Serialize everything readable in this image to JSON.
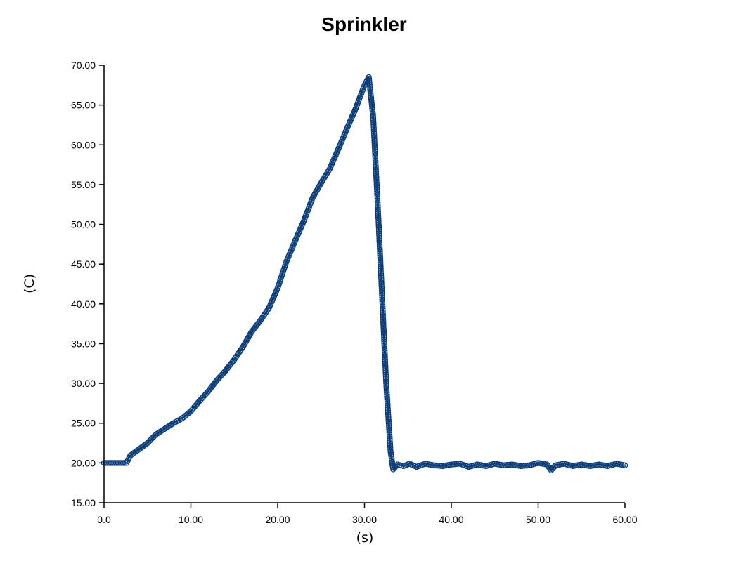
{
  "chart_data": {
    "type": "line",
    "title": "Sprinkler",
    "xlabel": "(s)",
    "ylabel": "(C)",
    "xlim": [
      0,
      60
    ],
    "ylim": [
      15,
      70
    ],
    "xticks": [
      "0.0",
      "10.00",
      "20.00",
      "30.00",
      "40.00",
      "50.00",
      "60.00"
    ],
    "yticks": [
      "15.00",
      "20.00",
      "25.00",
      "30.00",
      "35.00",
      "40.00",
      "45.00",
      "50.00",
      "55.00",
      "60.00",
      "65.00",
      "70.00"
    ],
    "grid": false,
    "legend": "none",
    "series": [
      {
        "color": "#0a3d7a",
        "marker": "circle-open",
        "x": [
          0,
          1,
          2,
          2.6,
          3,
          4,
          5,
          6,
          7,
          8,
          9,
          10,
          11,
          12,
          13,
          14,
          15,
          16,
          17,
          18,
          19,
          20,
          21,
          22,
          23,
          24,
          25,
          26,
          27,
          28,
          29,
          30,
          30.5,
          31,
          31.5,
          32,
          32.5,
          33,
          33.3,
          33.8,
          34.5,
          35.2,
          36,
          37,
          38,
          39,
          40,
          41,
          42,
          43,
          44,
          45,
          46,
          47,
          48,
          49,
          50,
          51,
          51.5,
          52,
          53,
          54,
          55,
          56,
          57,
          58,
          59,
          60
        ],
        "y": [
          20,
          20,
          20,
          20,
          20.9,
          21.7,
          22.5,
          23.6,
          24.3,
          25,
          25.6,
          26.5,
          27.8,
          29.0,
          30.4,
          31.6,
          33.0,
          34.6,
          36.5,
          37.9,
          39.5,
          42.0,
          45.3,
          47.9,
          50.4,
          53.3,
          55.2,
          57.0,
          59.5,
          62.1,
          64.6,
          67.5,
          68.5,
          63.5,
          53.0,
          41.5,
          30.0,
          21.5,
          19.2,
          19.8,
          19.6,
          19.9,
          19.5,
          19.9,
          19.7,
          19.6,
          19.8,
          19.9,
          19.5,
          19.8,
          19.6,
          19.9,
          19.7,
          19.8,
          19.6,
          19.7,
          20.0,
          19.8,
          19.1,
          19.7,
          19.9,
          19.6,
          19.8,
          19.6,
          19.8,
          19.6,
          19.9,
          19.7
        ]
      }
    ]
  }
}
